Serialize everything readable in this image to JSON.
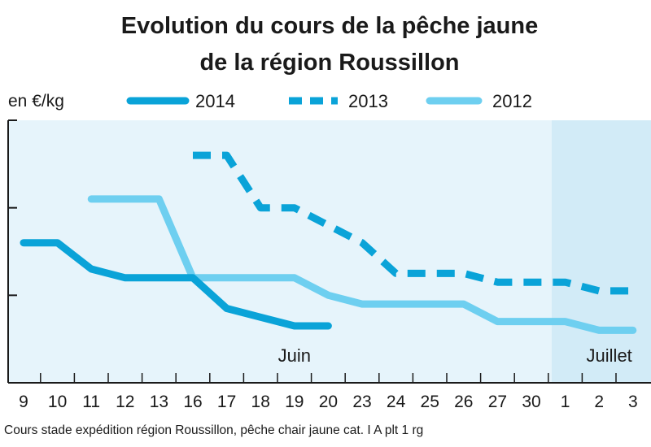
{
  "chart_data": {
    "type": "line",
    "title": "Evolution du cours de la pêche jaune",
    "subtitle": "de la région Roussillon",
    "ylabel": "en €/kg",
    "source": "Cours stade expédition région Roussillon, pêche chair jaune cat. I A plt 1 rg",
    "categories": [
      "9",
      "10",
      "11",
      "12",
      "13",
      "16",
      "17",
      "18",
      "19",
      "20",
      "23",
      "24",
      "25",
      "26",
      "27",
      "30",
      "1",
      "2",
      "3"
    ],
    "months": [
      {
        "label": "Juin",
        "index": 8
      },
      {
        "label": "Juillet",
        "index": 17.3
      }
    ],
    "july_start_index": 15.6,
    "ylim": [
      0,
      3
    ],
    "y_ticks": [
      1,
      2,
      3
    ],
    "grid": false,
    "legend_position": "top",
    "series": [
      {
        "name": "2014",
        "style": "solid",
        "color": "#0aa3d8",
        "points": [
          [
            0,
            1.6
          ],
          [
            1,
            1.6
          ],
          [
            2,
            1.3
          ],
          [
            3,
            1.2
          ],
          [
            4,
            1.2
          ],
          [
            5,
            1.2
          ],
          [
            6,
            0.85
          ],
          [
            7,
            0.75
          ],
          [
            8,
            0.65
          ],
          [
            9,
            0.65
          ]
        ]
      },
      {
        "name": "2013",
        "style": "dashed",
        "color": "#0aa3d8",
        "points": [
          [
            5,
            2.6
          ],
          [
            6,
            2.6
          ],
          [
            7,
            2.0
          ],
          [
            8,
            2.0
          ],
          [
            9,
            1.8
          ],
          [
            10,
            1.6
          ],
          [
            11,
            1.25
          ],
          [
            12,
            1.25
          ],
          [
            13,
            1.25
          ],
          [
            14,
            1.15
          ],
          [
            15,
            1.15
          ],
          [
            16,
            1.15
          ],
          [
            17,
            1.05
          ],
          [
            18,
            1.05
          ]
        ]
      },
      {
        "name": "2012",
        "style": "solid",
        "color": "#6ecff0",
        "points": [
          [
            2,
            2.1
          ],
          [
            3,
            2.1
          ],
          [
            4,
            2.1
          ],
          [
            5,
            1.2
          ],
          [
            6,
            1.2
          ],
          [
            7,
            1.2
          ],
          [
            8,
            1.2
          ],
          [
            9,
            1.0
          ],
          [
            10,
            0.9
          ],
          [
            11,
            0.9
          ],
          [
            12,
            0.9
          ],
          [
            13,
            0.9
          ],
          [
            14,
            0.7
          ],
          [
            15,
            0.7
          ],
          [
            16,
            0.7
          ],
          [
            17,
            0.6
          ],
          [
            18,
            0.6
          ]
        ]
      }
    ],
    "colors": {
      "plot_background": "#e6f4fb",
      "july_background": "#d2ebf7",
      "axis": "#1a1a1a"
    }
  }
}
